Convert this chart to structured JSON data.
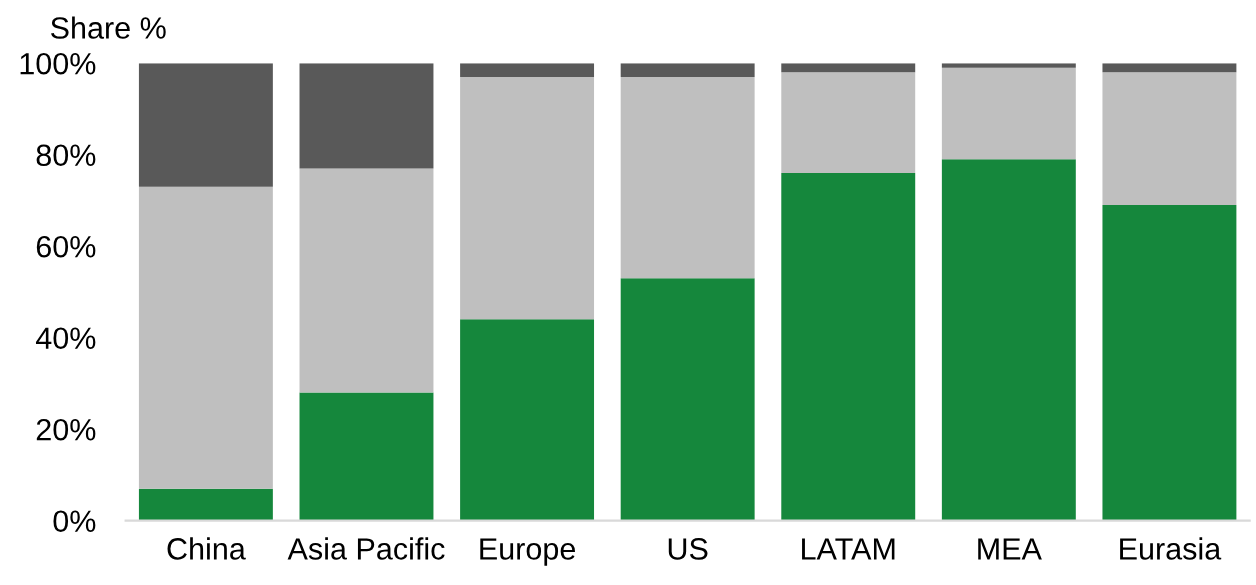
{
  "chart_data": {
    "type": "bar",
    "stacked": true,
    "ylabel": "Share %",
    "categories": [
      "China",
      "Asia Pacific",
      "Europe",
      "US",
      "LATAM",
      "MEA",
      "Eurasia"
    ],
    "series": [
      {
        "color": "#15873c",
        "values": [
          7,
          28,
          44,
          53,
          76,
          79,
          69
        ]
      },
      {
        "color": "#bfbfbf",
        "values": [
          66,
          49,
          53,
          44,
          22,
          20,
          29
        ]
      },
      {
        "color": "#595959",
        "values": [
          27,
          23,
          3,
          3,
          2,
          1,
          2
        ]
      }
    ],
    "ylim": [
      0,
      100
    ],
    "yticks": [
      {
        "value": 0,
        "label": "0%"
      },
      {
        "value": 20,
        "label": "20%"
      },
      {
        "value": 40,
        "label": "40%"
      },
      {
        "value": 60,
        "label": "60%"
      },
      {
        "value": 80,
        "label": "80%"
      },
      {
        "value": 100,
        "label": "100%"
      }
    ],
    "grid": false
  }
}
